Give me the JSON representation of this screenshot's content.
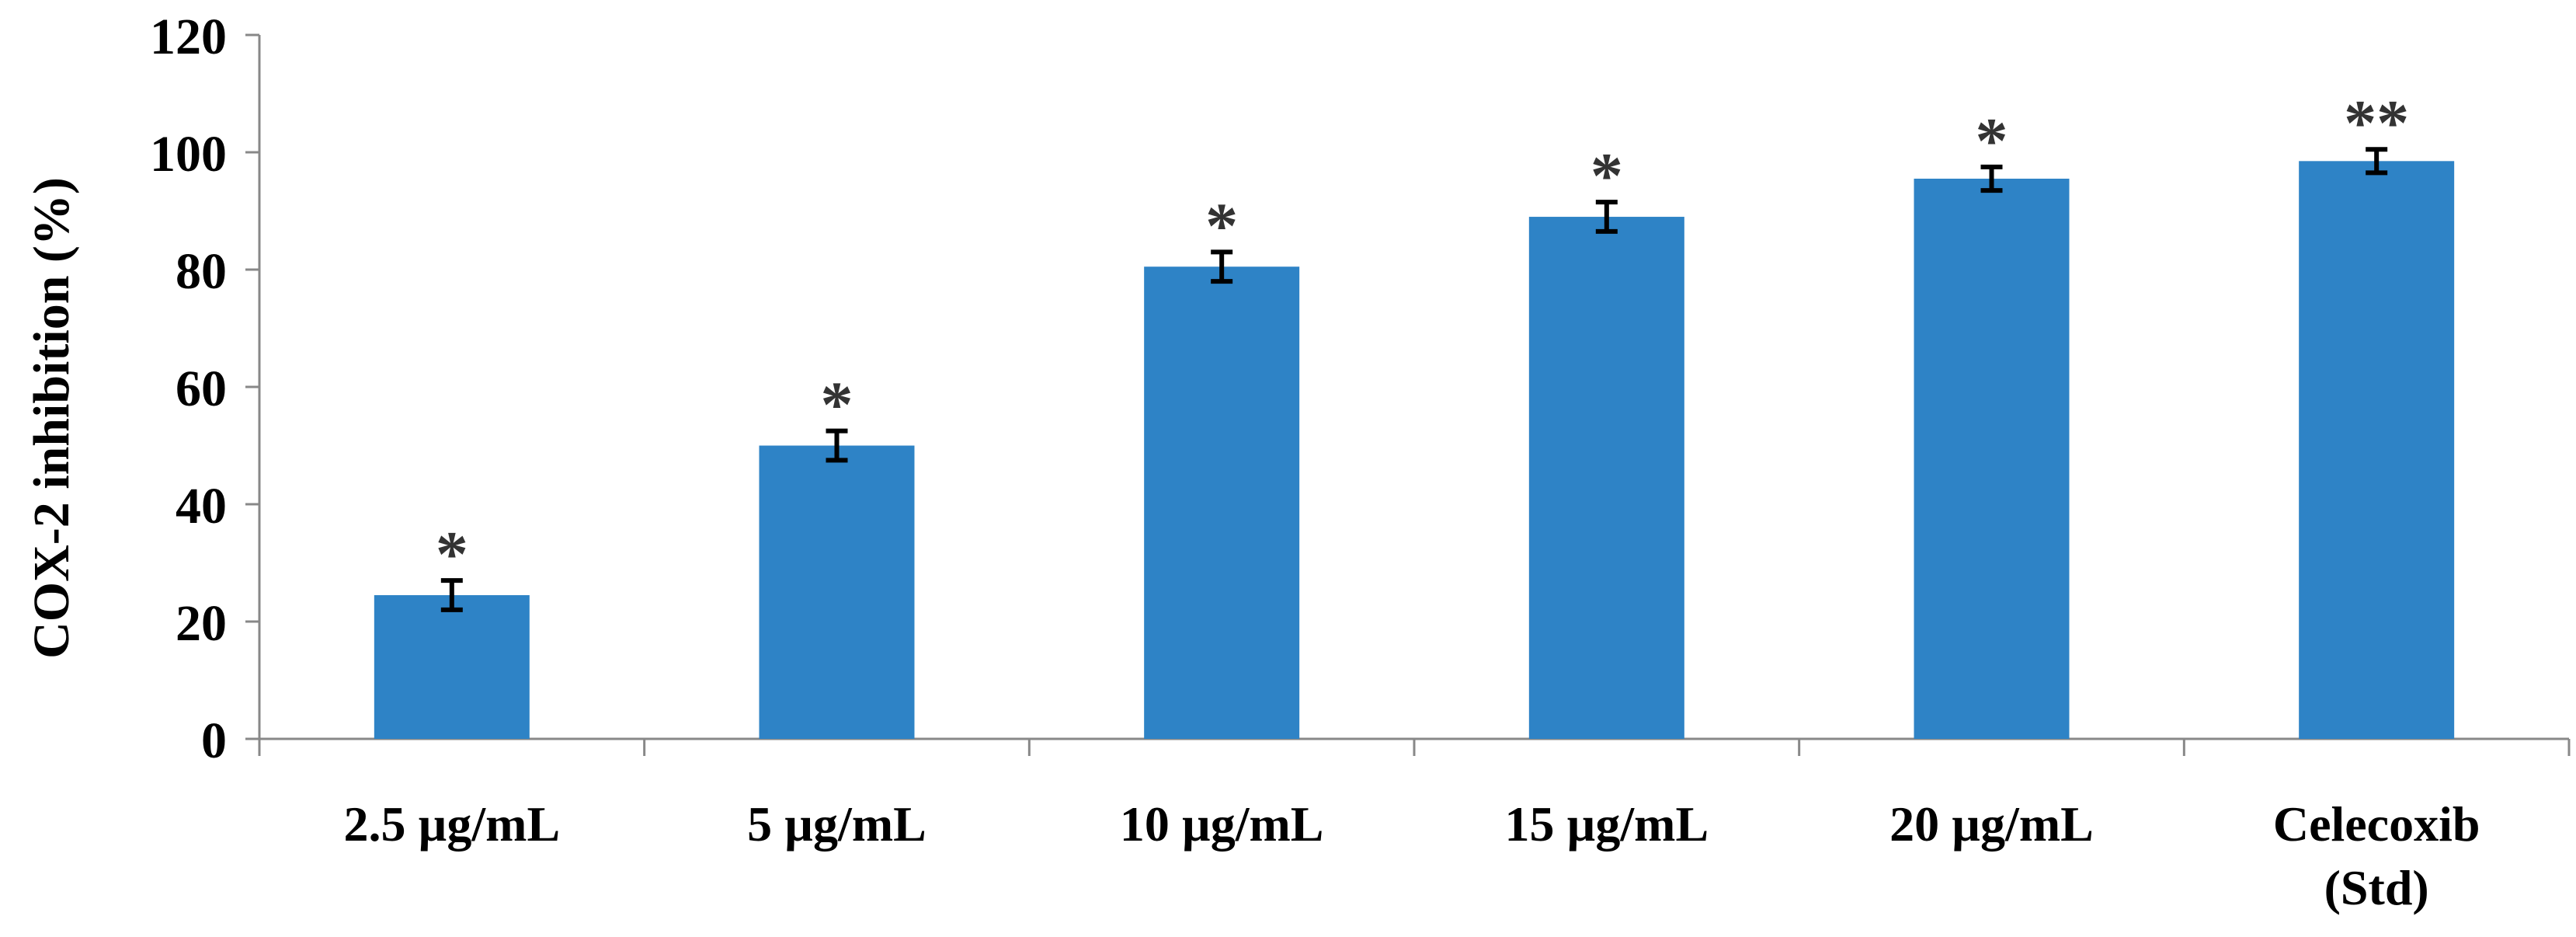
{
  "chart_data": {
    "type": "bar",
    "title": "",
    "xlabel": "",
    "ylabel": "COX-2 inhibition (%)",
    "ylim": [
      0,
      120
    ],
    "yticks": [
      0,
      20,
      40,
      60,
      80,
      100,
      120
    ],
    "ytick_labels": [
      "0",
      "20",
      "40",
      "60",
      "80",
      "100",
      "120"
    ],
    "categories": [
      [
        "2.5 µg/mL"
      ],
      [
        "5 µg/mL"
      ],
      [
        "10 µg/mL"
      ],
      [
        "15 µg/mL"
      ],
      [
        "20 µg/mL"
      ],
      [
        "Celecoxib",
        "(Std)"
      ]
    ],
    "values": [
      24.5,
      50,
      80.5,
      89,
      95.5,
      98.5
    ],
    "errors": [
      2.5,
      2.5,
      2.5,
      2.5,
      2.0,
      2.0
    ],
    "significance": [
      "*",
      "*",
      "*",
      "*",
      "*",
      "**"
    ],
    "grid": false,
    "colors": {
      "bar": "#2E83C6",
      "axis": "#888888",
      "error": "#000000",
      "text": "#000000",
      "significance": "#333333"
    }
  }
}
